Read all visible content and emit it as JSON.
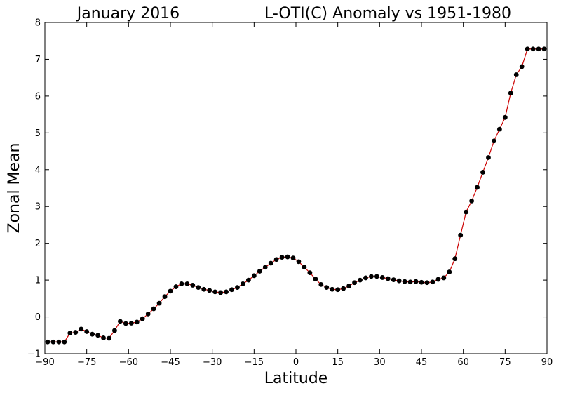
{
  "chart_data": {
    "type": "line",
    "title_left": "January 2016",
    "title_right": "L-OTI(C) Anomaly vs 1951-1980",
    "xlabel": "Latitude",
    "ylabel": "Zonal Mean",
    "xlim": [
      -90,
      90
    ],
    "ylim": [
      -1,
      8
    ],
    "xticks": [
      -90,
      -75,
      -60,
      -45,
      -30,
      -15,
      0,
      15,
      30,
      45,
      60,
      75,
      90
    ],
    "yticks": [
      -1,
      0,
      1,
      2,
      3,
      4,
      5,
      6,
      7,
      8
    ],
    "grid": false,
    "line_color": "#cc0000",
    "marker_color": "#000000",
    "series": [
      {
        "x": [
          -89,
          -87,
          -85,
          -83,
          -81,
          -79,
          -77,
          -75,
          -73,
          -71,
          -69,
          -67,
          -65,
          -63,
          -61,
          -59,
          -57,
          -55,
          -53,
          -51,
          -49,
          -47,
          -45,
          -43,
          -41,
          -39,
          -37,
          -35,
          -33,
          -31,
          -29,
          -27,
          -25,
          -23,
          -21,
          -19,
          -17,
          -15,
          -13,
          -11,
          -9,
          -7,
          -5,
          -3,
          -1,
          1,
          3,
          5,
          7,
          9,
          11,
          13,
          15,
          17,
          19,
          21,
          23,
          25,
          27,
          29,
          31,
          33,
          35,
          37,
          39,
          41,
          43,
          45,
          47,
          49,
          51,
          53,
          55,
          57,
          59,
          61,
          63,
          65,
          67,
          69,
          71,
          73,
          75,
          77,
          79,
          81,
          83,
          85,
          87,
          89
        ],
        "y": [
          -0.68,
          -0.68,
          -0.68,
          -0.68,
          -0.44,
          -0.42,
          -0.33,
          -0.4,
          -0.47,
          -0.5,
          -0.57,
          -0.58,
          -0.37,
          -0.12,
          -0.18,
          -0.17,
          -0.14,
          -0.05,
          0.08,
          0.22,
          0.37,
          0.55,
          0.7,
          0.82,
          0.9,
          0.9,
          0.86,
          0.8,
          0.75,
          0.72,
          0.68,
          0.66,
          0.68,
          0.74,
          0.8,
          0.9,
          1.0,
          1.12,
          1.24,
          1.35,
          1.46,
          1.56,
          1.62,
          1.63,
          1.6,
          1.5,
          1.35,
          1.2,
          1.03,
          0.88,
          0.8,
          0.75,
          0.74,
          0.77,
          0.84,
          0.93,
          1.0,
          1.06,
          1.1,
          1.1,
          1.07,
          1.04,
          1.01,
          0.98,
          0.96,
          0.95,
          0.96,
          0.94,
          0.93,
          0.95,
          1.02,
          1.06,
          1.22,
          1.58,
          2.22,
          2.85,
          3.15,
          3.52,
          3.93,
          4.33,
          4.78,
          5.1,
          5.42,
          6.08,
          6.58,
          6.8,
          7.28,
          7.28,
          7.28,
          7.28
        ]
      }
    ]
  }
}
